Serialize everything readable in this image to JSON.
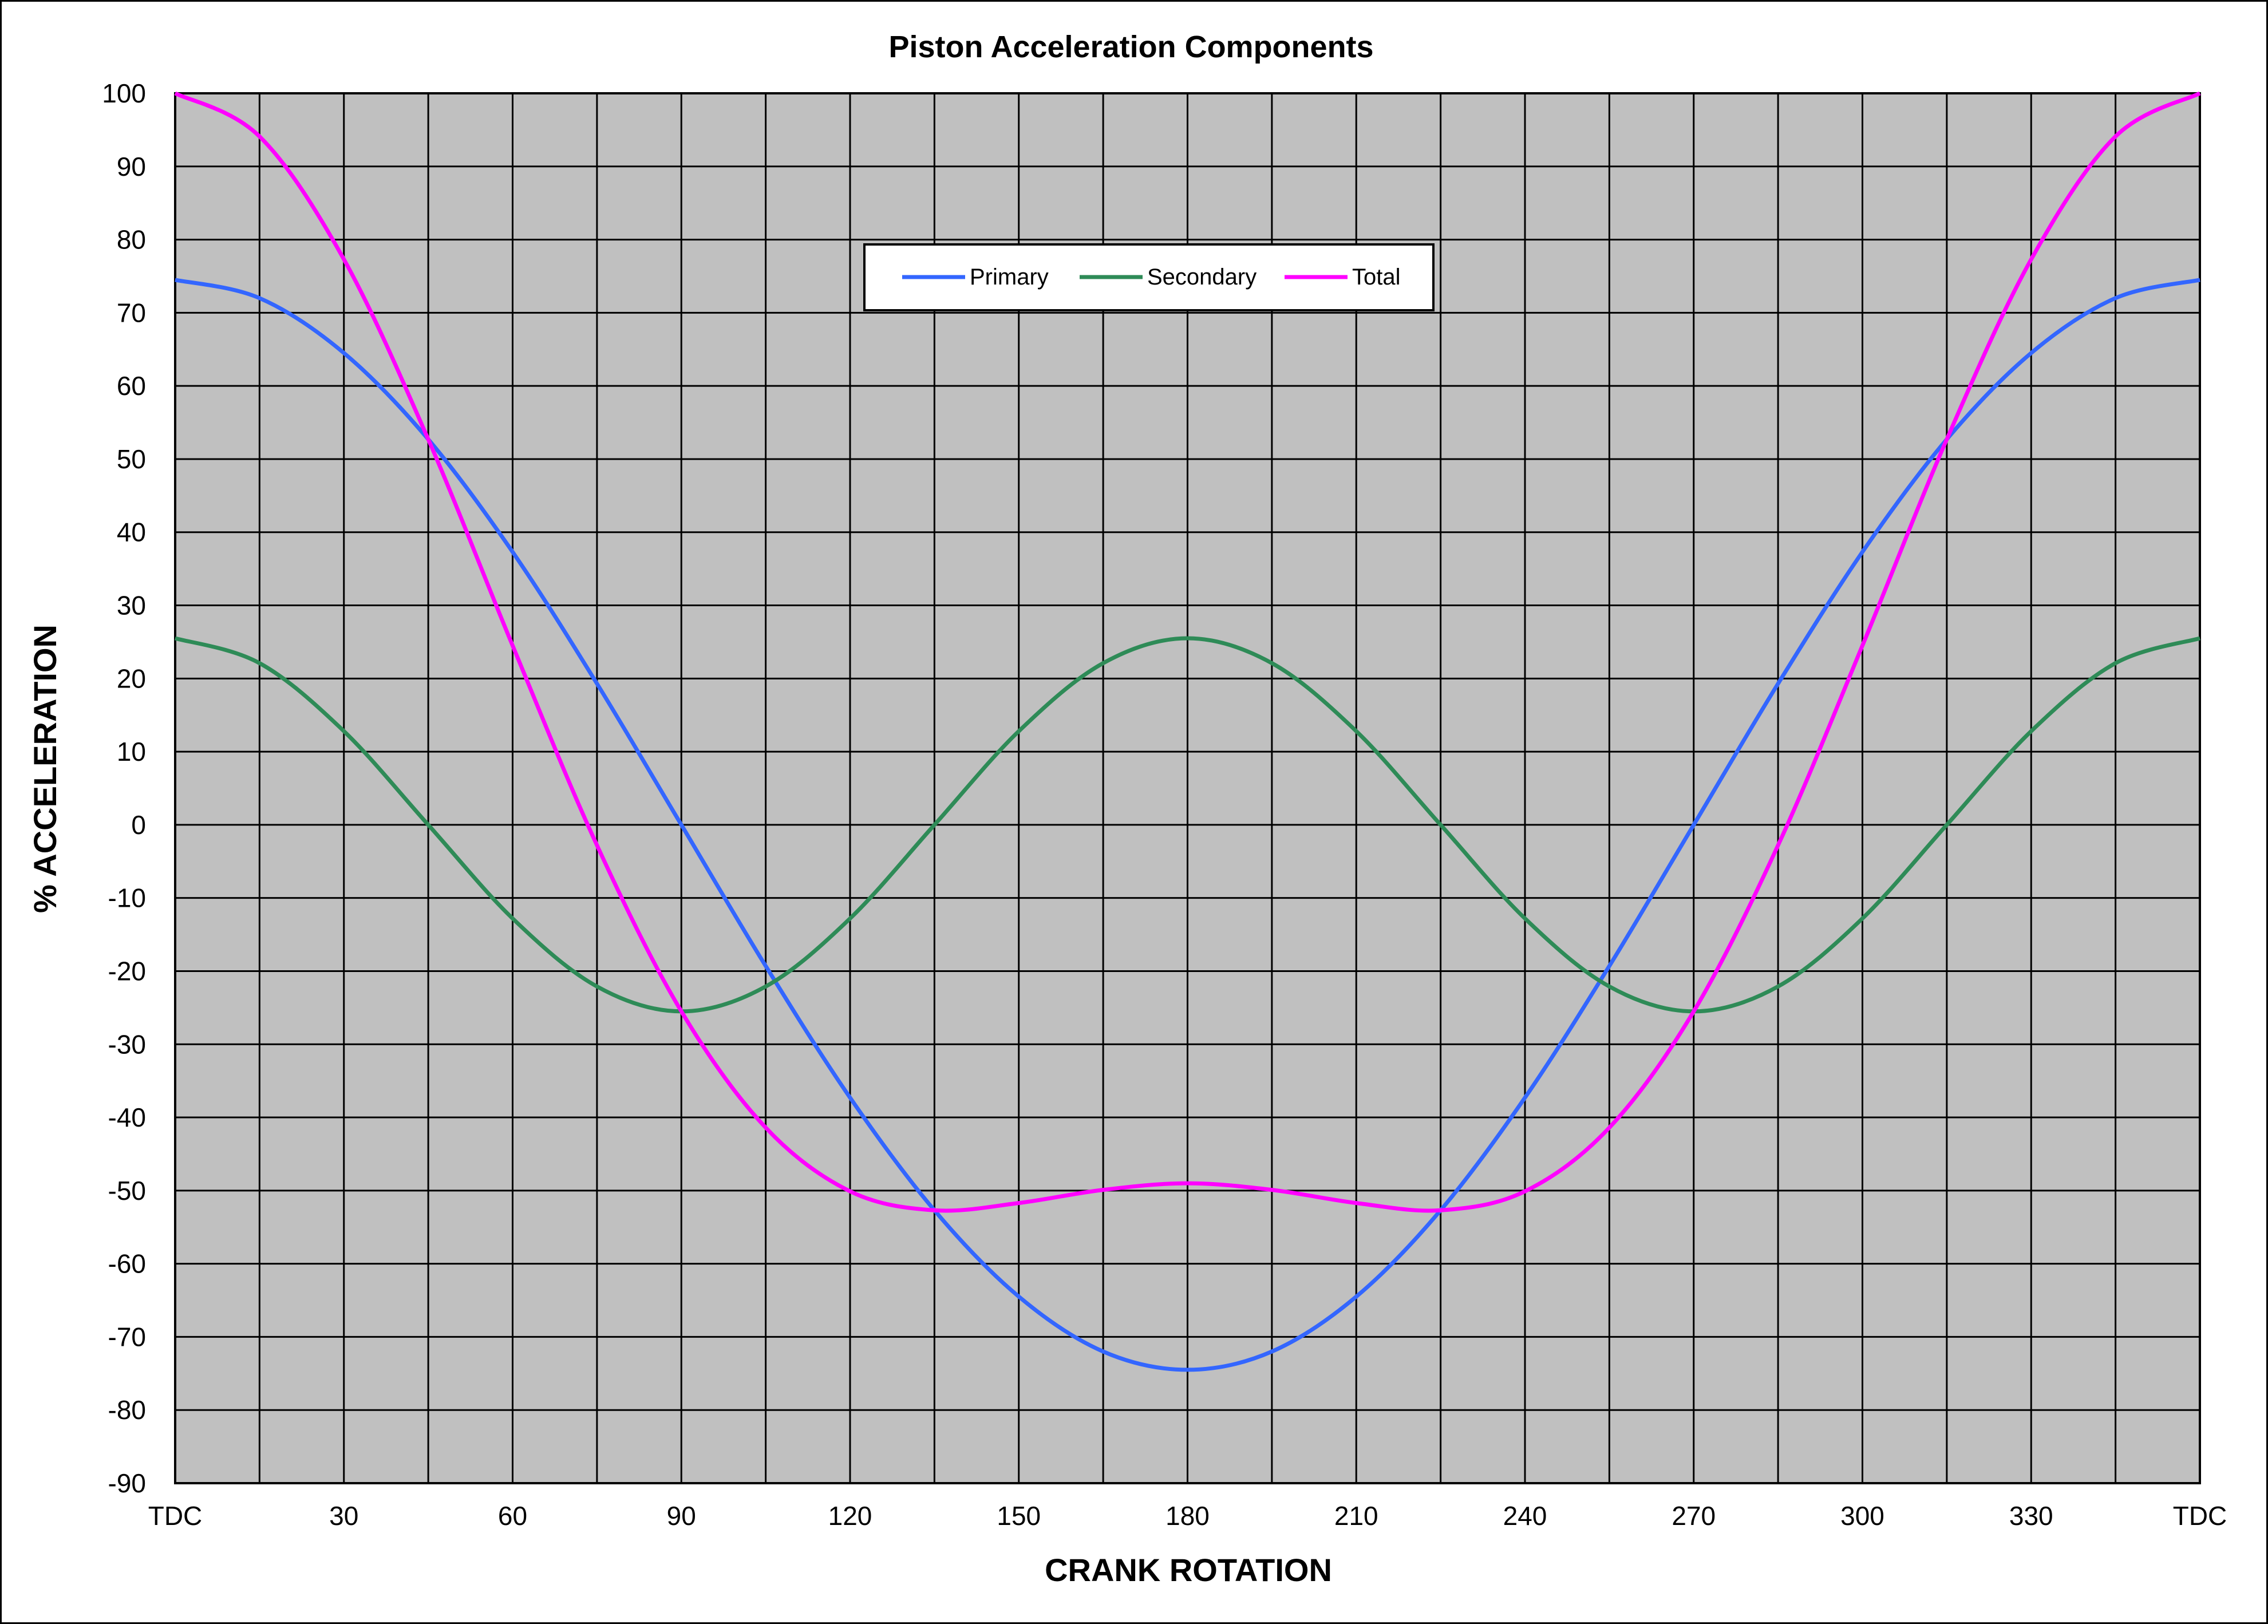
{
  "chart_data": {
    "type": "line",
    "title": "Piston Acceleration Components",
    "xlabel": "CRANK ROTATION",
    "ylabel": "% ACCELERATION",
    "x_tick_values": [
      0,
      30,
      60,
      90,
      120,
      150,
      180,
      210,
      240,
      270,
      300,
      330,
      360
    ],
    "x_tick_labels": [
      "TDC",
      "30",
      "60",
      "90",
      "120",
      "150",
      "180",
      "210",
      "240",
      "270",
      "300",
      "330",
      "TDC"
    ],
    "y_tick_values": [
      100,
      90,
      80,
      70,
      60,
      50,
      40,
      30,
      20,
      10,
      0,
      -10,
      -20,
      -30,
      -40,
      -50,
      -60,
      -70,
      -80,
      -90
    ],
    "y_tick_labels": [
      "100",
      "90",
      "80",
      "70",
      "60",
      "50",
      "40",
      "30",
      "20",
      "10",
      "0",
      "-10",
      "-20",
      "-30",
      "-40",
      "-50",
      "-60",
      "-70",
      "-80",
      "-90"
    ],
    "xlim": [
      0,
      360
    ],
    "ylim": [
      -90,
      100
    ],
    "x_grid_step": 15,
    "y_grid_step": 10,
    "grid": true,
    "plot_background": "#c0c0c0",
    "legend_position": "top-center",
    "x": [
      0,
      15,
      30,
      45,
      60,
      75,
      90,
      105,
      120,
      135,
      150,
      165,
      180,
      195,
      210,
      225,
      240,
      255,
      270,
      285,
      300,
      315,
      330,
      345,
      360
    ],
    "series": [
      {
        "name": "Primary",
        "color": "#3366ff",
        "values": [
          74.5,
          72.0,
          64.5,
          52.7,
          37.3,
          19.3,
          0.0,
          -19.3,
          -37.3,
          -52.7,
          -64.5,
          -72.0,
          -74.5,
          -72.0,
          -64.5,
          -52.7,
          -37.3,
          -19.3,
          0.0,
          19.3,
          37.3,
          52.7,
          64.5,
          72.0,
          74.5
        ]
      },
      {
        "name": "Secondary",
        "color": "#2e8b57",
        "values": [
          25.5,
          22.1,
          12.8,
          0.0,
          -12.8,
          -22.1,
          -25.5,
          -22.1,
          -12.8,
          0.0,
          12.8,
          22.1,
          25.5,
          22.1,
          12.8,
          0.0,
          -12.8,
          -22.1,
          -25.5,
          -22.1,
          -12.8,
          0.0,
          12.8,
          22.1,
          25.5
        ]
      },
      {
        "name": "Total",
        "color": "#ff00ff",
        "values": [
          100.0,
          94.1,
          77.3,
          52.7,
          24.5,
          -2.8,
          -25.5,
          -41.4,
          -50.1,
          -52.7,
          -51.7,
          -49.9,
          -49.0,
          -49.9,
          -51.7,
          -52.7,
          -50.1,
          -41.4,
          -25.5,
          -2.8,
          24.5,
          52.7,
          77.3,
          94.1,
          100.0
        ]
      }
    ]
  }
}
